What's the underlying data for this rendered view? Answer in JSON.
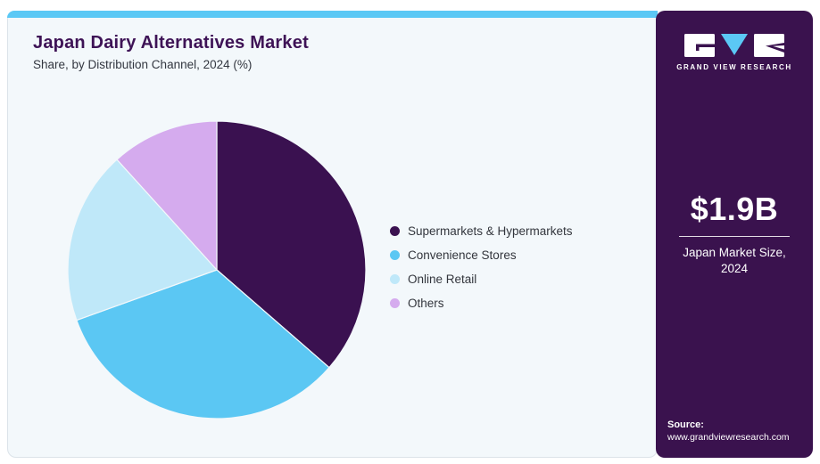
{
  "header": {
    "title": "Japan Dairy Alternatives Market",
    "subtitle": "Share, by Distribution Channel, 2024 (%)"
  },
  "chart_data": {
    "type": "pie",
    "title": "Japan Dairy Alternatives Market Share, by Distribution Channel, 2024 (%)",
    "unit": "%",
    "start_angle_deg": 0,
    "direction": "clockwise",
    "legend_position": "right",
    "data_labels_shown": false,
    "series": [
      {
        "name": "Supermarkets & Hypermarkets",
        "value": 36.4,
        "color": "#3a1150"
      },
      {
        "name": "Convenience Stores",
        "value": 33.1,
        "color": "#5bc7f3"
      },
      {
        "name": "Online Retail",
        "value": 18.8,
        "color": "#bfe8f9"
      },
      {
        "name": "Others",
        "value": 11.7,
        "color": "#d5abee"
      }
    ]
  },
  "sidebar": {
    "brand": "GRAND VIEW RESEARCH",
    "stat_value": "$1.9B",
    "stat_label": "Japan Market Size, 2024",
    "source_label": "Source:",
    "source_url": "www.grandviewresearch.com"
  },
  "colors": {
    "accent_bar": "#5bc8f5",
    "card_bg": "#f3f8fb",
    "card_border": "#dce3e9",
    "sidebar_bg": "#3a124e",
    "title_text": "#3e1356",
    "body_text": "#333740",
    "slice_stroke": "#f3f8fb"
  }
}
